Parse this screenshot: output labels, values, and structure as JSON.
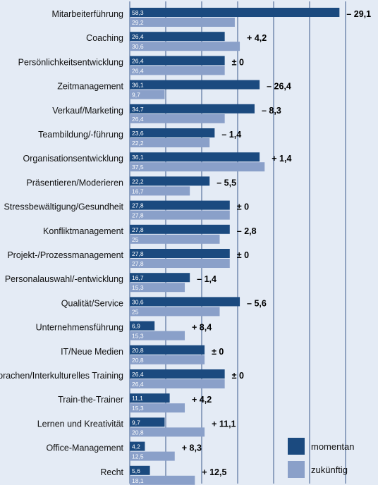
{
  "chart_data": {
    "type": "bar",
    "orientation": "horizontal",
    "xlim": [
      0,
      60
    ],
    "grid": true,
    "legend_position": "bottom-right",
    "colors": {
      "momentan": "#1b4a7f",
      "zukuenftig": "#8aa0c9",
      "grid": "#3a5a8c",
      "background": "#e4ebf5"
    },
    "categories": [
      "Mitarbeiterführung",
      "Coaching",
      "Persönlichkeitsentwicklung",
      "Zeitmanagement",
      "Verkauf/Marketing",
      "Teambildung/-führung",
      "Organisationsentwicklung",
      "Präsentieren/Moderieren",
      "Stressbewältigung/Gesundheit",
      "Konfliktmanagement",
      "Projekt-/Prozessmanagement",
      "Personalauswahl/-entwicklung",
      "Qualität/Service",
      "Unternehmensführung",
      "IT/Neue Medien",
      "Sprachen/Interkulturelles Training",
      "Train-the-Trainer",
      "Lernen und Kreativität",
      "Office-Management",
      "Recht"
    ],
    "series": [
      {
        "name": "momentan",
        "values": [
          58.3,
          26.4,
          26.4,
          36.1,
          34.7,
          23.6,
          36.1,
          22.2,
          27.8,
          27.8,
          27.8,
          16.7,
          30.6,
          6.9,
          20.8,
          26.4,
          11.1,
          9.7,
          4.2,
          5.6
        ],
        "labels": [
          "58,3",
          "26,4",
          "26,4",
          "36,1",
          "34,7",
          "23,6",
          "36,1",
          "22,2",
          "27,8",
          "27,8",
          "27,8",
          "16,7",
          "30,6",
          "6,9",
          "20,8",
          "26,4",
          "11,1",
          "9,7",
          "4,2",
          "5,6"
        ]
      },
      {
        "name": "zukünftig",
        "values": [
          29.2,
          30.6,
          26.4,
          9.7,
          26.4,
          22.2,
          37.5,
          16.7,
          27.8,
          25,
          27.8,
          15.3,
          25,
          15.3,
          20.8,
          26.4,
          15.3,
          20.8,
          12.5,
          18.1
        ],
        "labels": [
          "29,2",
          "30,6",
          "26,4",
          "9,7",
          "26,4",
          "22,2",
          "37,5",
          "16,7",
          "27,8",
          "25",
          "27,8",
          "15,3",
          "25",
          "15,3",
          "20,8",
          "26,4",
          "15,3",
          "20,8",
          "12,5",
          "18,1"
        ]
      }
    ],
    "differences": [
      "– 29,1",
      "+ 4,2",
      "± 0",
      "– 26,4",
      "– 8,3",
      "– 1,4",
      "+ 1,4",
      "– 5,5",
      "± 0",
      "– 2,8",
      "± 0",
      "– 1,4",
      "– 5,6",
      "+ 8,4",
      "± 0",
      "± 0",
      "+ 4,2",
      "+ 11,1",
      "+ 8,3",
      "+ 12,5"
    ]
  }
}
